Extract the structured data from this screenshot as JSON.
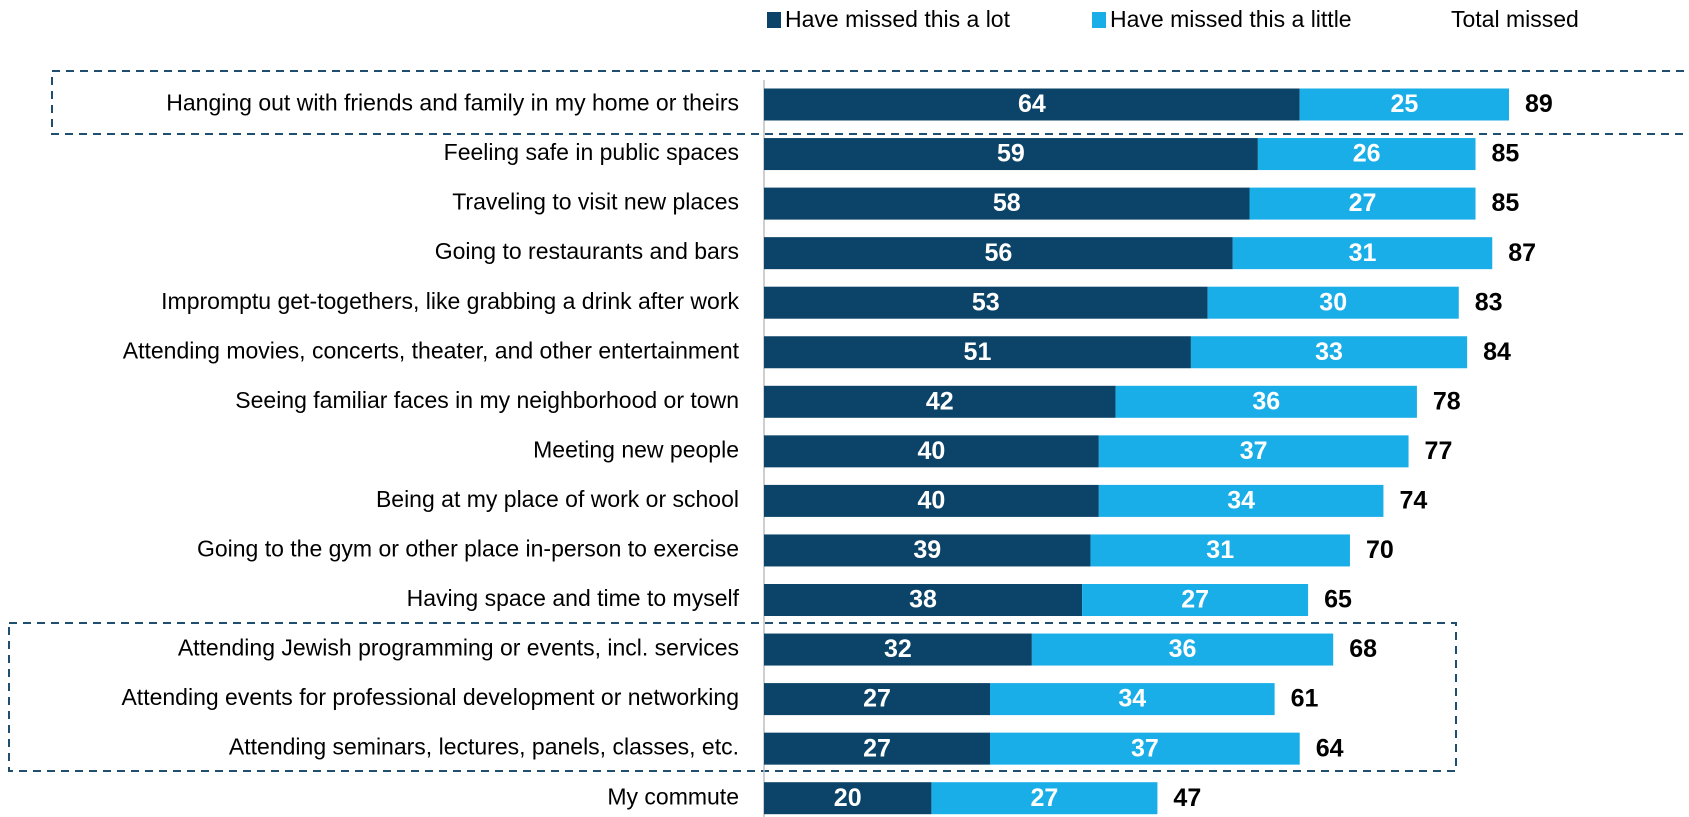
{
  "chart_data": {
    "type": "stacked-bar-horizontal",
    "categories": [
      "Hanging out with friends and family in my home or theirs",
      "Feeling safe in public spaces",
      "Traveling to visit new places",
      "Going to restaurants and bars",
      "Impromptu get-togethers, like grabbing a drink after work",
      "Attending movies, concerts, theater, and other entertainment",
      "Seeing familiar faces in my neighborhood or town",
      "Meeting new people",
      "Being at my place of work or school",
      "Going to the gym or other place in-person to exercise",
      "Having space and time to myself",
      "Attending Jewish programming or events, incl. services",
      "Attending events for professional development or networking",
      "Attending seminars, lectures, panels, classes, etc.",
      "My commute"
    ],
    "series": [
      {
        "name": "Have missed this a lot",
        "color": "#0b4468",
        "values": [
          64,
          59,
          58,
          56,
          53,
          51,
          42,
          40,
          40,
          39,
          38,
          32,
          27,
          27,
          20
        ]
      },
      {
        "name": "Have missed this a little",
        "color": "#1aaee8",
        "values": [
          25,
          26,
          27,
          31,
          30,
          33,
          36,
          37,
          34,
          31,
          27,
          36,
          34,
          37,
          27
        ]
      }
    ],
    "totals": {
      "name": "Total missed",
      "values": [
        89,
        85,
        85,
        87,
        83,
        84,
        78,
        77,
        74,
        70,
        65,
        68,
        61,
        64,
        47
      ]
    },
    "legend": "top"
  }
}
